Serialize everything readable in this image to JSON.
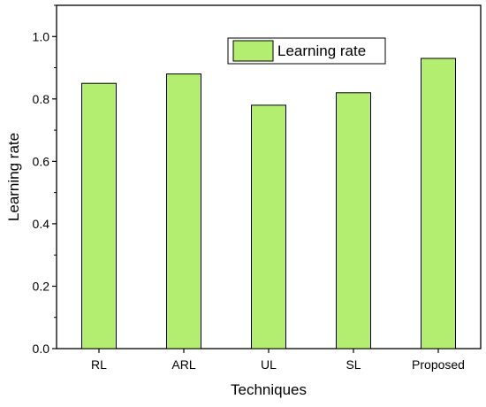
{
  "chart_data": {
    "type": "bar",
    "title": "",
    "xlabel": "Techniques",
    "ylabel": "Learning rate",
    "categories": [
      "RL",
      "ARL",
      "UL",
      "SL",
      "Proposed"
    ],
    "series": [
      {
        "name": "Learning rate",
        "values": [
          0.85,
          0.88,
          0.78,
          0.82,
          0.93
        ]
      }
    ],
    "ylim": [
      0.0,
      1.1
    ],
    "yticks": [
      "0.0",
      "0.2",
      "0.4",
      "0.6",
      "0.8",
      "1.0"
    ],
    "grid": false,
    "legend": "top-center",
    "colors": {
      "bar_fill": "#b3ee70",
      "bar_stroke": "#000000",
      "axis": "#000000"
    }
  }
}
